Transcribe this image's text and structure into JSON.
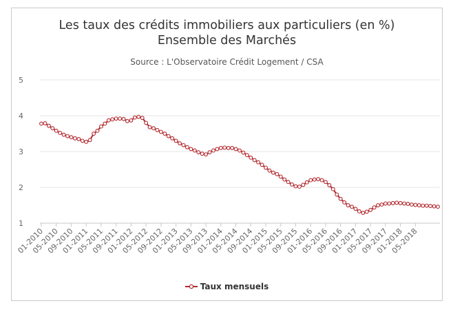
{
  "chart_data": {
    "type": "line",
    "title": "Les taux des crédits immobiliers aux particuliers (en %)",
    "title_line2": "Ensemble des Marchés",
    "subtitle": "Source : L'Observatoire Crédit Logement / CSA",
    "xlabel": "",
    "ylabel": "",
    "ylim": [
      1,
      5
    ],
    "yticks": [
      1,
      2,
      3,
      4,
      5
    ],
    "grid": true,
    "legend_position": "bottom",
    "x_tick_labels": [
      "01-2010",
      "05-2010",
      "09-2010",
      "01-2011",
      "05-2011",
      "09-2011",
      "01-2012",
      "05-2012",
      "09-2012",
      "01-2013",
      "05-2013",
      "09-2013",
      "01-2014",
      "05-2014",
      "09-2014",
      "01-2015",
      "05-2015",
      "09-2015",
      "01-2016",
      "05-2016",
      "09-2016",
      "01-2017",
      "05-2017",
      "09-2017",
      "01-2018",
      "05-2018"
    ],
    "series": [
      {
        "name": "Taux mensuels",
        "color": "#b2262c",
        "start": "01-2010",
        "values": [
          3.78,
          3.79,
          3.72,
          3.65,
          3.58,
          3.52,
          3.47,
          3.43,
          3.4,
          3.37,
          3.35,
          3.3,
          3.27,
          3.32,
          3.5,
          3.58,
          3.7,
          3.78,
          3.87,
          3.9,
          3.92,
          3.92,
          3.91,
          3.85,
          3.87,
          3.95,
          3.97,
          3.94,
          3.8,
          3.68,
          3.65,
          3.6,
          3.55,
          3.5,
          3.43,
          3.37,
          3.3,
          3.23,
          3.18,
          3.12,
          3.07,
          3.03,
          2.98,
          2.94,
          2.92,
          2.98,
          3.03,
          3.07,
          3.1,
          3.11,
          3.1,
          3.1,
          3.07,
          3.03,
          2.97,
          2.9,
          2.83,
          2.76,
          2.7,
          2.63,
          2.55,
          2.47,
          2.41,
          2.37,
          2.3,
          2.22,
          2.15,
          2.08,
          2.03,
          2.02,
          2.07,
          2.14,
          2.2,
          2.22,
          2.23,
          2.2,
          2.15,
          2.06,
          1.95,
          1.8,
          1.68,
          1.58,
          1.5,
          1.46,
          1.4,
          1.33,
          1.29,
          1.32,
          1.37,
          1.44,
          1.5,
          1.52,
          1.55,
          1.55,
          1.56,
          1.57,
          1.56,
          1.55,
          1.54,
          1.52,
          1.51,
          1.5,
          1.49,
          1.49,
          1.48,
          1.47,
          1.46
        ]
      }
    ]
  }
}
